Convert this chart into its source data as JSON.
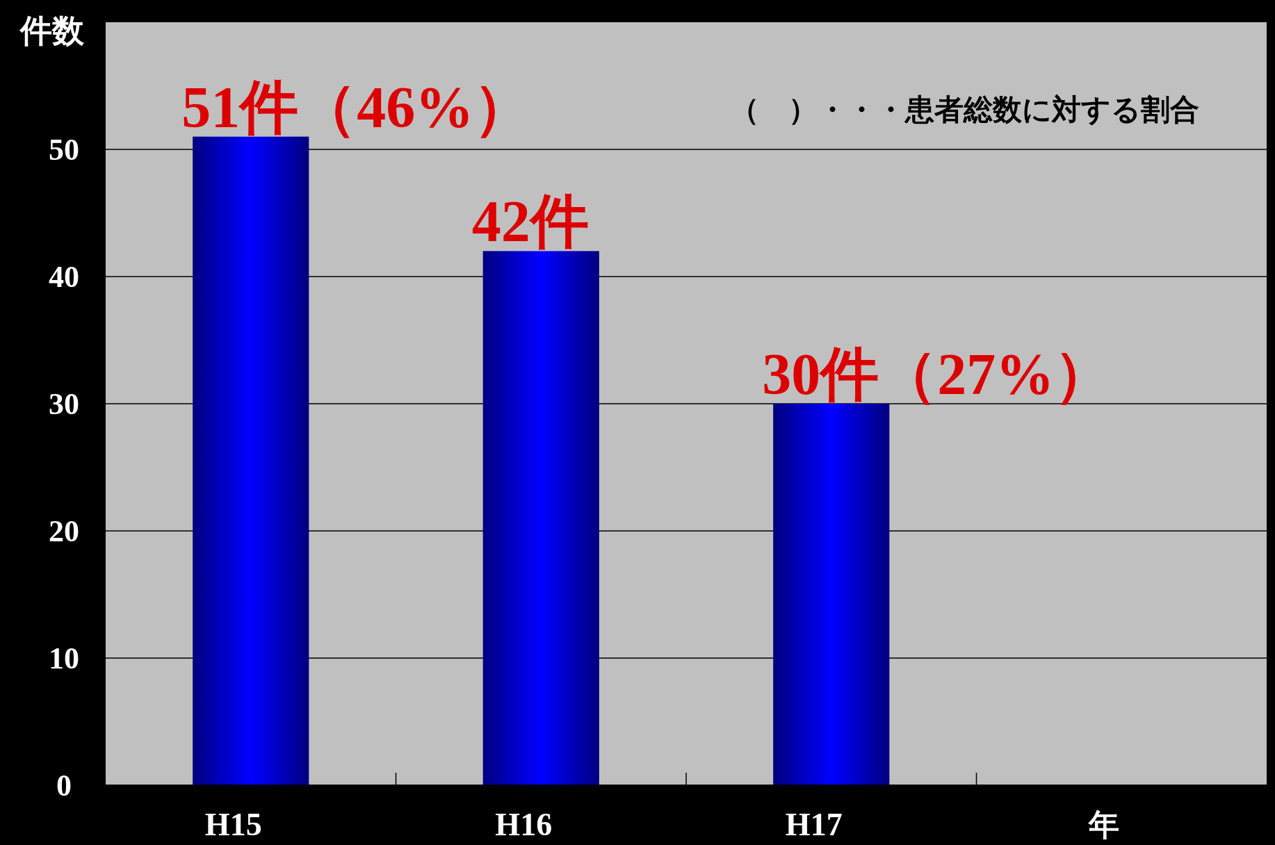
{
  "chart_data": {
    "type": "bar",
    "ylabel": "件数",
    "xlabel": "年",
    "categories": [
      "H15",
      "H16",
      "H17"
    ],
    "values": [
      51,
      42,
      30
    ],
    "color": "#0000ff",
    "value_labels": [
      "51件（46%）",
      "42件",
      "30件（27%）"
    ],
    "annotations": [
      "（　）・・・患者総数に対する割合"
    ],
    "ylim": [
      0,
      60
    ],
    "yticks": [
      0,
      10,
      20,
      30,
      40,
      50
    ],
    "grid": "y"
  }
}
